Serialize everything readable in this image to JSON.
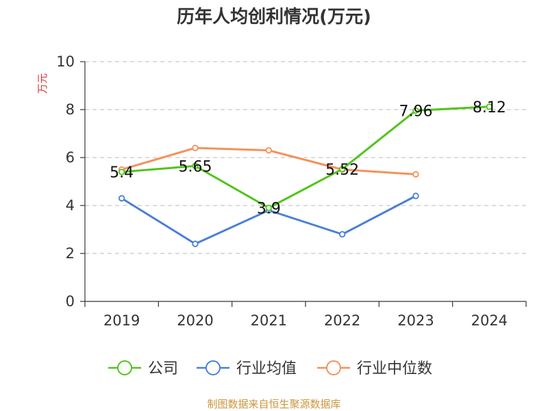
{
  "chart_data": {
    "type": "line",
    "title": "历年人均创利情况(万元)",
    "ylabel": "万元",
    "ylabel_color": "#e03030",
    "categories": [
      "2019",
      "2020",
      "2021",
      "2022",
      "2023",
      "2024"
    ],
    "ylim": [
      0,
      10
    ],
    "yticks": [
      "0",
      "2",
      "4",
      "6",
      "8",
      "10"
    ],
    "grid": true,
    "legend_position": "bottom",
    "series": [
      {
        "name": "公司",
        "color": "#52c41a",
        "values": [
          5.4,
          5.65,
          3.9,
          5.52,
          7.96,
          8.12
        ],
        "labels": [
          "5.4",
          "5.65",
          "3.9",
          "5.52",
          "7.96",
          "8.12"
        ]
      },
      {
        "name": "行业均值",
        "color": "#4a7fd8",
        "values": [
          4.3,
          2.4,
          3.8,
          2.8,
          4.4,
          null
        ]
      },
      {
        "name": "行业中位数",
        "color": "#f5915a",
        "values": [
          5.5,
          6.4,
          6.3,
          5.5,
          5.3,
          null
        ]
      }
    ],
    "source": "制图数据来自恒生聚源数据库",
    "source_color": "#c8963c"
  }
}
